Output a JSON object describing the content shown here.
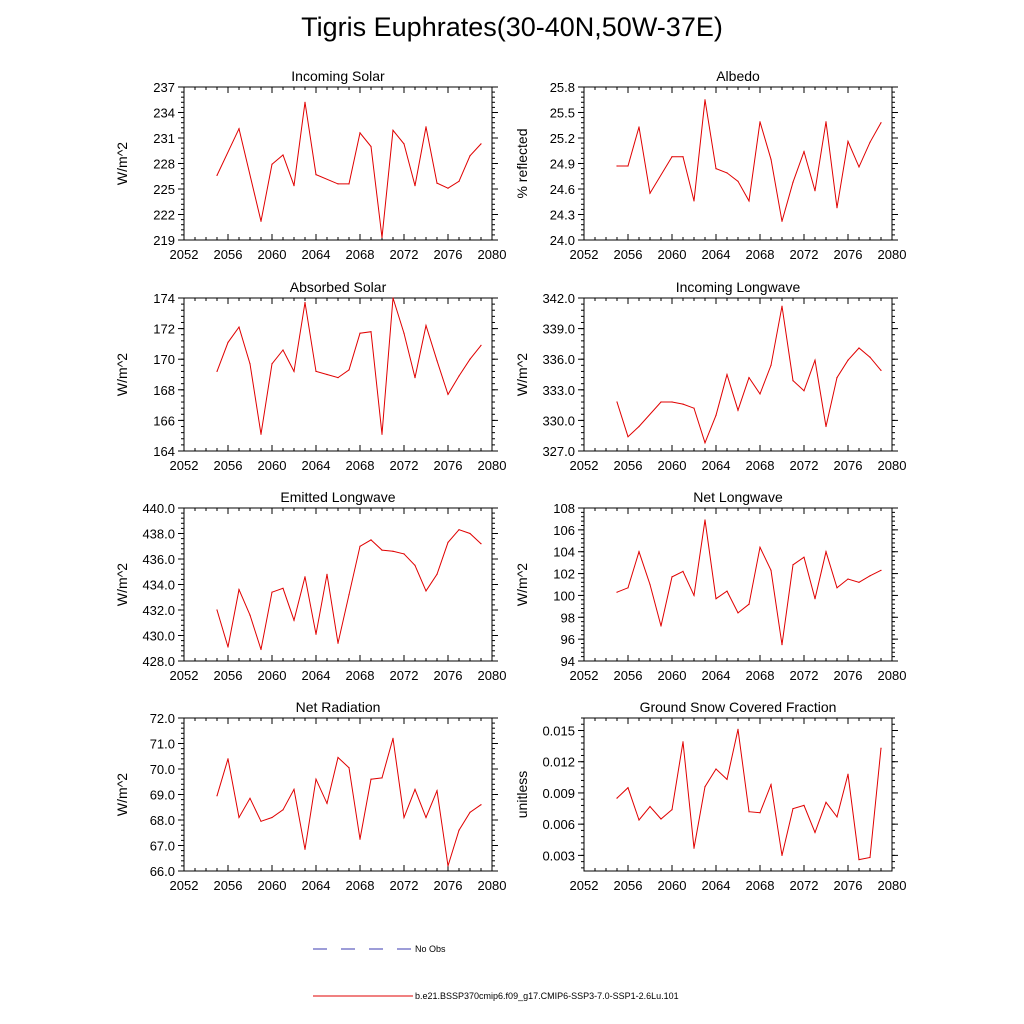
{
  "title": "Tigris Euphrates(30-40N,50W-37E)",
  "legend": [
    {
      "label": "No Obs",
      "color": "#3b3bb0",
      "style": "dashed"
    },
    {
      "label": "b.e21.BSSP370cmip6.f09_g17.CMIP6-SSP3-7.0-SSP1-2.6Lu.101",
      "color": "#e00000",
      "style": "solid"
    }
  ],
  "line_color": "#e00000",
  "chart_data": [
    {
      "type": "line",
      "title": "Incoming Solar",
      "ylabel": "W/m^2",
      "xlim": [
        2052,
        2080
      ],
      "ylim": [
        219,
        237
      ],
      "xticks": [
        2052,
        2056,
        2060,
        2064,
        2068,
        2072,
        2076,
        2080
      ],
      "yticks": [
        219,
        222,
        225,
        228,
        231,
        234,
        237
      ],
      "ytick_labels": [
        "219",
        "222",
        "225",
        "228",
        "231",
        "234",
        "237"
      ],
      "series": [
        {
          "x": [
            2055,
            2057,
            2059,
            2060,
            2061,
            2062,
            2063,
            2064,
            2066,
            2067,
            2068,
            2069,
            2070,
            2071,
            2072,
            2073,
            2074,
            2075,
            2076,
            2077,
            2078,
            2079
          ],
          "y": [
            226.6,
            232.1,
            221.2,
            227.9,
            229.0,
            225.4,
            235.2,
            226.7,
            225.6,
            225.6,
            231.6,
            230.0,
            219.3,
            231.9,
            230.3,
            225.4,
            232.3,
            225.7,
            225.1,
            225.9,
            228.9,
            230.3
          ]
        }
      ]
    },
    {
      "type": "line",
      "title": "Albedo",
      "ylabel": "% reflected",
      "xlim": [
        2052,
        2080
      ],
      "ylim": [
        24.0,
        25.8
      ],
      "xticks": [
        2052,
        2056,
        2060,
        2064,
        2068,
        2072,
        2076,
        2080
      ],
      "yticks": [
        24.0,
        24.3,
        24.6,
        24.9,
        25.2,
        25.5,
        25.8
      ],
      "ytick_labels": [
        "24.0",
        "24.3",
        "24.6",
        "24.9",
        "25.2",
        "25.5",
        "25.8"
      ],
      "series": [
        {
          "x": [
            2055,
            2056,
            2057,
            2058,
            2060,
            2061,
            2062,
            2063,
            2064,
            2065,
            2066,
            2067,
            2068,
            2069,
            2070,
            2071,
            2072,
            2073,
            2074,
            2075,
            2076,
            2077,
            2078,
            2079
          ],
          "y": [
            24.87,
            24.87,
            25.33,
            24.55,
            24.98,
            24.98,
            24.46,
            25.65,
            24.84,
            24.79,
            24.69,
            24.46,
            25.39,
            24.95,
            24.22,
            24.68,
            25.04,
            24.58,
            25.39,
            24.38,
            25.16,
            24.86,
            25.15,
            25.38
          ]
        }
      ]
    },
    {
      "type": "line",
      "title": "Absorbed Solar",
      "ylabel": "W/m^2",
      "xlim": [
        2052,
        2080
      ],
      "ylim": [
        164,
        174
      ],
      "xticks": [
        2052,
        2056,
        2060,
        2064,
        2068,
        2072,
        2076,
        2080
      ],
      "yticks": [
        164,
        166,
        168,
        170,
        172,
        174
      ],
      "ytick_labels": [
        "164",
        "166",
        "168",
        "170",
        "172",
        "174"
      ],
      "series": [
        {
          "x": [
            2055,
            2056,
            2057,
            2058,
            2059,
            2060,
            2061,
            2062,
            2063,
            2064,
            2065,
            2066,
            2067,
            2068,
            2069,
            2070,
            2071,
            2072,
            2073,
            2074,
            2075,
            2076,
            2077,
            2078,
            2079
          ],
          "y": [
            169.2,
            171.1,
            172.1,
            169.7,
            165.1,
            169.7,
            170.6,
            169.2,
            173.7,
            169.2,
            169.0,
            168.8,
            169.3,
            171.7,
            171.8,
            165.1,
            174.0,
            171.7,
            168.8,
            172.2,
            169.9,
            167.7,
            168.9,
            170.0,
            170.9
          ]
        }
      ]
    },
    {
      "type": "line",
      "title": "Incoming Longwave",
      "ylabel": "W/m^2",
      "xlim": [
        2052,
        2080
      ],
      "ylim": [
        327.0,
        342.0
      ],
      "xticks": [
        2052,
        2056,
        2060,
        2064,
        2068,
        2072,
        2076,
        2080
      ],
      "yticks": [
        327.0,
        330.0,
        333.0,
        336.0,
        339.0,
        342.0
      ],
      "ytick_labels": [
        "327.0",
        "330.0",
        "333.0",
        "336.0",
        "339.0",
        "342.0"
      ],
      "series": [
        {
          "x": [
            2055,
            2056,
            2057,
            2059,
            2060,
            2061,
            2062,
            2063,
            2064,
            2065,
            2066,
            2067,
            2068,
            2069,
            2070,
            2071,
            2072,
            2073,
            2074,
            2075,
            2076,
            2077,
            2078,
            2079
          ],
          "y": [
            331.8,
            328.4,
            329.4,
            331.8,
            331.8,
            331.6,
            331.2,
            327.8,
            330.5,
            334.5,
            331.0,
            334.2,
            332.6,
            335.4,
            341.2,
            333.9,
            332.9,
            335.9,
            329.4,
            334.2,
            335.9,
            337.1,
            336.2,
            334.9
          ]
        }
      ]
    },
    {
      "type": "line",
      "title": "Emitted Longwave",
      "ylabel": "W/m^2",
      "xlim": [
        2052,
        2080
      ],
      "ylim": [
        428.0,
        440.0
      ],
      "xticks": [
        2052,
        2056,
        2060,
        2064,
        2068,
        2072,
        2076,
        2080
      ],
      "yticks": [
        428.0,
        430.0,
        432.0,
        434.0,
        436.0,
        438.0,
        440.0
      ],
      "ytick_labels": [
        "428.0",
        "430.0",
        "432.0",
        "434.0",
        "436.0",
        "438.0",
        "440.0"
      ],
      "series": [
        {
          "x": [
            2055,
            2056,
            2057,
            2058,
            2059,
            2060,
            2061,
            2062,
            2063,
            2064,
            2065,
            2066,
            2067,
            2068,
            2069,
            2070,
            2071,
            2072,
            2073,
            2074,
            2075,
            2076,
            2077,
            2078,
            2079
          ],
          "y": [
            432.0,
            429.1,
            433.6,
            431.6,
            428.9,
            433.4,
            433.7,
            431.2,
            434.6,
            430.1,
            434.8,
            429.4,
            433.2,
            437.0,
            437.5,
            436.7,
            436.6,
            436.4,
            435.5,
            433.5,
            434.8,
            437.3,
            438.3,
            438.0,
            437.2
          ]
        }
      ]
    },
    {
      "type": "line",
      "title": "Net Longwave",
      "ylabel": "W/m^2",
      "xlim": [
        2052,
        2080
      ],
      "ylim": [
        94,
        108
      ],
      "xticks": [
        2052,
        2056,
        2060,
        2064,
        2068,
        2072,
        2076,
        2080
      ],
      "yticks": [
        94,
        96,
        98,
        100,
        102,
        104,
        106,
        108
      ],
      "ytick_labels": [
        "94",
        "96",
        "98",
        "100",
        "102",
        "104",
        "106",
        "108"
      ],
      "series": [
        {
          "x": [
            2055,
            2056,
            2057,
            2058,
            2059,
            2060,
            2061,
            2062,
            2063,
            2064,
            2065,
            2066,
            2067,
            2068,
            2069,
            2070,
            2071,
            2072,
            2073,
            2074,
            2075,
            2076,
            2077,
            2078,
            2079
          ],
          "y": [
            100.3,
            100.7,
            104.0,
            101.0,
            97.2,
            101.7,
            102.2,
            100.0,
            106.9,
            99.7,
            100.4,
            98.4,
            99.2,
            104.4,
            102.3,
            95.5,
            102.8,
            103.5,
            99.7,
            104.0,
            100.7,
            101.5,
            101.2,
            101.8,
            102.3
          ]
        }
      ]
    },
    {
      "type": "line",
      "title": "Net Radiation",
      "ylabel": "W/m^2",
      "xlim": [
        2052,
        2080
      ],
      "ylim": [
        66.0,
        72.0
      ],
      "xticks": [
        2052,
        2056,
        2060,
        2064,
        2068,
        2072,
        2076,
        2080
      ],
      "yticks": [
        66.0,
        67.0,
        68.0,
        69.0,
        70.0,
        71.0,
        72.0
      ],
      "ytick_labels": [
        "66.0",
        "67.0",
        "68.0",
        "69.0",
        "70.0",
        "71.0",
        "72.0"
      ],
      "series": [
        {
          "x": [
            2055,
            2056,
            2057,
            2058,
            2059,
            2060,
            2061,
            2062,
            2063,
            2064,
            2065,
            2066,
            2067,
            2068,
            2069,
            2070,
            2071,
            2072,
            2073,
            2074,
            2075,
            2076,
            2077,
            2078,
            2079
          ],
          "y": [
            68.95,
            70.4,
            68.1,
            68.85,
            67.95,
            68.1,
            68.4,
            69.2,
            66.85,
            69.6,
            68.65,
            70.45,
            70.05,
            67.25,
            69.6,
            69.65,
            71.2,
            68.1,
            69.2,
            68.1,
            69.15,
            66.2,
            67.6,
            68.3,
            68.6
          ]
        }
      ]
    },
    {
      "type": "line",
      "title": "Ground Snow Covered Fraction",
      "ylabel": "unitless",
      "xlim": [
        2052,
        2080
      ],
      "ylim": [
        0.0015,
        0.0162
      ],
      "xticks": [
        2052,
        2056,
        2060,
        2064,
        2068,
        2072,
        2076,
        2080
      ],
      "yticks": [
        0.003,
        0.006,
        0.009,
        0.012,
        0.015
      ],
      "ytick_labels": [
        "0.003",
        "0.006",
        "0.009",
        "0.012",
        "0.015"
      ],
      "series": [
        {
          "x": [
            2055,
            2056,
            2057,
            2058,
            2059,
            2060,
            2061,
            2062,
            2063,
            2064,
            2065,
            2066,
            2067,
            2068,
            2069,
            2070,
            2071,
            2072,
            2073,
            2074,
            2075,
            2076,
            2077,
            2078,
            2079
          ],
          "y": [
            0.0085,
            0.0095,
            0.0064,
            0.0077,
            0.0065,
            0.0074,
            0.0139,
            0.0037,
            0.0096,
            0.0113,
            0.0103,
            0.0151,
            0.0072,
            0.0071,
            0.0098,
            0.003,
            0.0075,
            0.0078,
            0.0052,
            0.0081,
            0.0067,
            0.0108,
            0.0026,
            0.0028,
            0.0133
          ]
        }
      ]
    }
  ]
}
